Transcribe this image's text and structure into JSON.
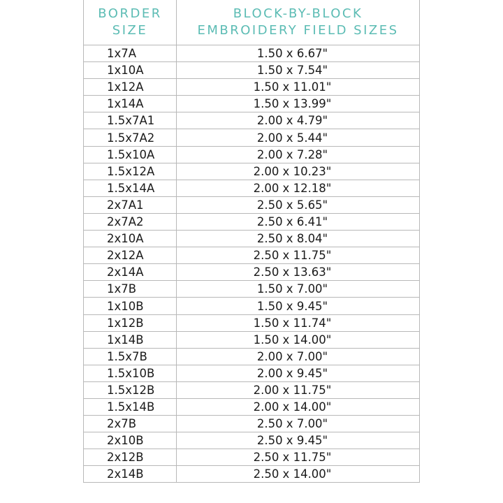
{
  "table": {
    "headers": [
      "BORDER SIZE",
      "BLOCK-BY-BLOCK EMBROIDERY FIELD SIZES"
    ],
    "header_lines": [
      [
        "BORDER",
        "SIZE"
      ],
      [
        "BLOCK-BY-BLOCK",
        "EMBROIDERY FIELD SIZES"
      ]
    ],
    "header_color": "#5cbcb4",
    "rows": [
      [
        "1x7A",
        "1.50 x 6.67\""
      ],
      [
        "1x10A",
        "1.50 x 7.54\""
      ],
      [
        "1x12A",
        "1.50 x 11.01\""
      ],
      [
        "1x14A",
        "1.50 x 13.99\""
      ],
      [
        "1.5x7A1",
        "2.00 x 4.79\""
      ],
      [
        "1.5x7A2",
        "2.00 x 5.44\""
      ],
      [
        "1.5x10A",
        "2.00 x 7.28\""
      ],
      [
        "1.5x12A",
        "2.00 x 10.23\""
      ],
      [
        "1.5x14A",
        "2.00 x 12.18\""
      ],
      [
        "2x7A1",
        "2.50 x 5.65\""
      ],
      [
        "2x7A2",
        "2.50 x 6.41\""
      ],
      [
        "2x10A",
        "2.50 x 8.04\""
      ],
      [
        "2x12A",
        "2.50 x 11.75\""
      ],
      [
        "2x14A",
        "2.50 x 13.63\""
      ],
      [
        "1x7B",
        "1.50 x 7.00\""
      ],
      [
        "1x10B",
        "1.50 x 9.45\""
      ],
      [
        "1x12B",
        "1.50 x 11.74\""
      ],
      [
        "1x14B",
        "1.50 x 14.00\""
      ],
      [
        "1.5x7B",
        "2.00 x 7.00\""
      ],
      [
        "1.5x10B",
        "2.00 x 9.45\""
      ],
      [
        "1.5x12B",
        "2.00 x 11.75\""
      ],
      [
        "1.5x14B",
        "2.00 x 14.00\""
      ],
      [
        "2x7B",
        "2.50 x 7.00\""
      ],
      [
        "2x10B",
        "2.50 x 9.45\""
      ],
      [
        "2x12B",
        "2.50 x 11.75\""
      ],
      [
        "2x14B",
        "2.50 x 14.00\""
      ]
    ]
  }
}
